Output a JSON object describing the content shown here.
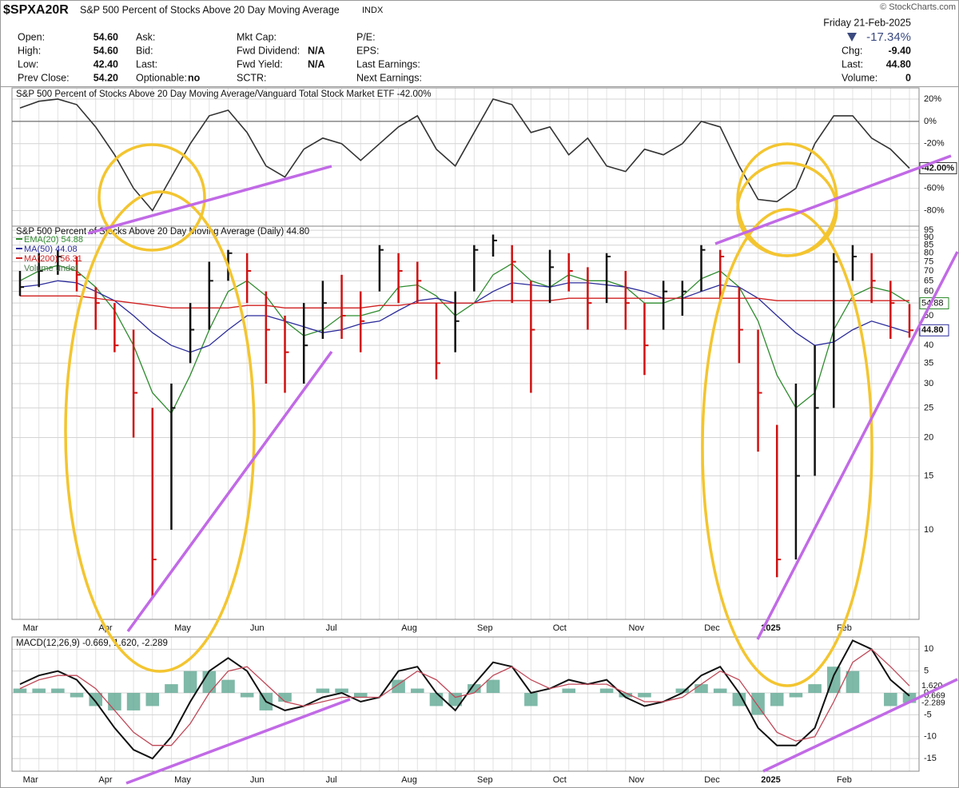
{
  "header": {
    "symbol": "$SPXA20R",
    "name": "S&P 500 Percent of Stocks Above 20 Day Moving Average",
    "exchange": "INDX",
    "credit": "© StockCharts.com",
    "date": "Friday 21-Feb-2025",
    "change_pct": "-17.34%",
    "columns": [
      [
        {
          "label": "Open:",
          "value": "54.60"
        },
        {
          "label": "High:",
          "value": "54.60"
        },
        {
          "label": "Low:",
          "value": "42.40"
        },
        {
          "label": "Prev Close:",
          "value": "54.20"
        }
      ],
      [
        {
          "label": "Ask:"
        },
        {
          "label": "Bid:"
        },
        {
          "label": "Last:"
        },
        {
          "label": "Optionable:",
          "value": "no"
        }
      ],
      [
        {
          "label": "Mkt Cap:"
        },
        {
          "label": "Fwd Dividend:",
          "value": "N/A"
        },
        {
          "label": "Fwd Yield:",
          "value": "N/A"
        },
        {
          "label": "SCTR:"
        }
      ],
      [
        {
          "label": "P/E:"
        },
        {
          "label": "EPS:"
        },
        {
          "label": "Last Earnings:"
        },
        {
          "label": "Next Earnings:"
        }
      ]
    ],
    "right": [
      {
        "label": "Chg:",
        "value": "-9.40"
      },
      {
        "label": "Last:",
        "value": "44.80"
      },
      {
        "label": "Volume:",
        "value": "0"
      }
    ]
  },
  "chart_data": [
    {
      "type": "line",
      "title": "S&P 500 Percent of Stocks Above 20 Day Moving Average/Vanguard Total Stock Market ETF -42.00%",
      "color": "#333333",
      "values": [
        12,
        18,
        20,
        15,
        -5,
        -30,
        -60,
        -80,
        -50,
        -20,
        5,
        10,
        -10,
        -40,
        -50,
        -25,
        -15,
        -20,
        -35,
        -20,
        -5,
        5,
        -25,
        -40,
        -10,
        20,
        15,
        -10,
        -5,
        -30,
        -15,
        -40,
        -45,
        -25,
        -30,
        -20,
        0,
        -5,
        -40,
        -70,
        -72,
        -60,
        -20,
        5,
        5,
        -15,
        -25,
        -42
      ],
      "value_label": {
        "value": -42,
        "label": "-42.00%"
      },
      "ylim": [
        -94,
        30
      ],
      "yticks": [
        {
          "value": 20,
          "label": "20%"
        },
        {
          "value": 0,
          "label": "0%"
        },
        {
          "value": -20,
          "label": "-20%"
        },
        {
          "value": -40,
          "label": "-40%"
        },
        {
          "value": -60,
          "label": "-60%"
        },
        {
          "value": -80,
          "label": "-80%"
        }
      ],
      "zero_line": true,
      "grid": true
    },
    {
      "type": "hlc",
      "title": "S&P 500 Percent of Stocks Above 20 Day Moving Average (Daily) 44.80",
      "categories": [
        null,
        "Mar",
        null,
        null,
        null,
        "Apr",
        null,
        null,
        null,
        "May",
        null,
        null,
        null,
        "Jun",
        null,
        null,
        null,
        "Jul",
        null,
        null,
        null,
        "Aug",
        null,
        null,
        null,
        "Sep",
        null,
        null,
        null,
        "Oct",
        null,
        null,
        null,
        "Nov",
        null,
        null,
        null,
        "Dec",
        null,
        null,
        "2025",
        null,
        null,
        null,
        "Feb",
        null,
        null,
        null
      ],
      "high": [
        70,
        80,
        82,
        78,
        62,
        55,
        45,
        25,
        30,
        55,
        75,
        82,
        80,
        60,
        50,
        55,
        65,
        68,
        60,
        85,
        80,
        75,
        55,
        60,
        85,
        92,
        85,
        65,
        82,
        80,
        72,
        80,
        70,
        55,
        65,
        65,
        85,
        82,
        62,
        45,
        22,
        30,
        40,
        80,
        85,
        80,
        65,
        54.6
      ],
      "low": [
        58,
        62,
        68,
        60,
        45,
        38,
        20,
        6,
        10,
        35,
        45,
        65,
        55,
        30,
        28,
        30,
        42,
        42,
        38,
        60,
        55,
        55,
        31,
        38,
        60,
        78,
        55,
        28,
        55,
        60,
        45,
        55,
        45,
        32,
        45,
        50,
        60,
        55,
        35,
        18,
        7,
        8,
        15,
        25,
        65,
        55,
        42,
        42.4
      ],
      "close": [
        62,
        70,
        78,
        68,
        55,
        40,
        28,
        8,
        25,
        45,
        65,
        80,
        70,
        45,
        38,
        40,
        55,
        50,
        48,
        82,
        70,
        65,
        35,
        48,
        82,
        88,
        75,
        45,
        72,
        70,
        55,
        78,
        55,
        40,
        60,
        60,
        82,
        78,
        45,
        28,
        8,
        15,
        25,
        75,
        78,
        65,
        55,
        44.8
      ],
      "up_color": "#111111",
      "down_color": "#d01010",
      "log": true,
      "ylim": [
        5.1,
        98
      ],
      "yticks": [
        10,
        15,
        20,
        25,
        30,
        35,
        40,
        45,
        50,
        55,
        60,
        65,
        70,
        75,
        80,
        85,
        90,
        95
      ],
      "grid": true,
      "series": [
        {
          "name": "EMA(20) 54.88",
          "color": "#2e8b2e",
          "values": [
            65,
            70,
            73,
            70,
            62,
            52,
            40,
            28,
            24,
            32,
            45,
            60,
            65,
            58,
            48,
            43,
            45,
            50,
            50,
            52,
            62,
            63,
            58,
            50,
            55,
            68,
            74,
            65,
            62,
            68,
            65,
            65,
            62,
            55,
            55,
            58,
            66,
            70,
            62,
            48,
            32,
            25,
            28,
            45,
            58,
            62,
            60,
            55
          ]
        },
        {
          "name": "MA(50) 44.08",
          "color": "#2b2b9b",
          "values": [
            62,
            63,
            65,
            64,
            60,
            56,
            50,
            44,
            40,
            38,
            40,
            45,
            50,
            50,
            48,
            46,
            44,
            45,
            47,
            48,
            52,
            56,
            57,
            55,
            55,
            60,
            64,
            63,
            62,
            64,
            64,
            63,
            62,
            60,
            57,
            57,
            60,
            63,
            62,
            57,
            50,
            44,
            40,
            41,
            45,
            48,
            46,
            44
          ]
        },
        {
          "name": "MA(200) 56.31",
          "color": "#d02020",
          "values": [
            58,
            58,
            58,
            58,
            57,
            56,
            55,
            54,
            53,
            53,
            53,
            53,
            54,
            54,
            53,
            53,
            53,
            53,
            53,
            54,
            54,
            55,
            55,
            55,
            55,
            56,
            56,
            56,
            56,
            57,
            57,
            57,
            57,
            57,
            57,
            57,
            57,
            57,
            57,
            57,
            56,
            56,
            56,
            56,
            56,
            56,
            56,
            56
          ]
        }
      ],
      "volume_legend": "Volume undef",
      "right_labels": [
        {
          "value": 54.88,
          "label": "54.88"
        },
        {
          "value": 44.8,
          "label": "44.80"
        }
      ]
    },
    {
      "type": "macd",
      "title": "MACD(12,26,9) -0.669, 1.620, -2.289",
      "categories": [
        null,
        "Mar",
        null,
        null,
        null,
        "Apr",
        null,
        null,
        null,
        "May",
        null,
        null,
        null,
        "Jun",
        null,
        null,
        null,
        "Jul",
        null,
        null,
        null,
        "Aug",
        null,
        null,
        null,
        "Sep",
        null,
        null,
        null,
        "Oct",
        null,
        null,
        null,
        "Nov",
        null,
        null,
        null,
        "Dec",
        null,
        null,
        "2025",
        null,
        null,
        null,
        "Feb",
        null,
        null,
        null
      ],
      "series": [
        {
          "color": "#111111",
          "values": [
            2,
            4,
            5,
            3,
            -2,
            -8,
            -13,
            -15,
            -10,
            -2,
            5,
            8,
            5,
            -2,
            -4,
            -3,
            -1,
            0,
            -2,
            -1,
            5,
            6,
            0,
            -4,
            2,
            7,
            6,
            0,
            1,
            3,
            2,
            3,
            -1,
            -3,
            -2,
            0,
            4,
            6,
            0,
            -8,
            -12,
            -12,
            -8,
            4,
            12,
            10,
            3,
            -0.669
          ]
        },
        {
          "color": "#c04858",
          "values": [
            1,
            3,
            4,
            4,
            1,
            -4,
            -9,
            -12,
            -12,
            -7,
            0,
            5,
            6,
            2,
            -2,
            -3,
            -2,
            -1,
            -1,
            -1,
            2,
            5,
            3,
            -1,
            0,
            4,
            6,
            3,
            1,
            2,
            2,
            2,
            0,
            -2,
            -2,
            -1,
            2,
            5,
            3,
            -3,
            -9,
            -11,
            -10,
            -2,
            7,
            10,
            6,
            1.62
          ]
        }
      ],
      "histogram": {
        "color": "#5fa892",
        "values": [
          1,
          1,
          1,
          -1,
          -3,
          -4,
          -4,
          -3,
          2,
          5,
          5,
          3,
          -1,
          -4,
          -2,
          0,
          1,
          1,
          -1,
          0,
          3,
          1,
          -3,
          -3,
          2,
          3,
          0,
          -3,
          0,
          1,
          0,
          1,
          -1,
          -1,
          0,
          1,
          2,
          1,
          -3,
          -5,
          -3,
          -1,
          2,
          6,
          5,
          0,
          -3,
          -2.289
        ]
      },
      "right_labels": [
        {
          "value": 1.62,
          "label": "1.620"
        },
        {
          "value": -0.669,
          "label": "-0.669"
        },
        {
          "value": -2.289,
          "label": "-2.289"
        }
      ],
      "ylim": [
        -17.9,
        12.8
      ],
      "yticks": [
        10,
        5,
        0,
        -5,
        -10,
        -15
      ],
      "grid": true
    }
  ]
}
